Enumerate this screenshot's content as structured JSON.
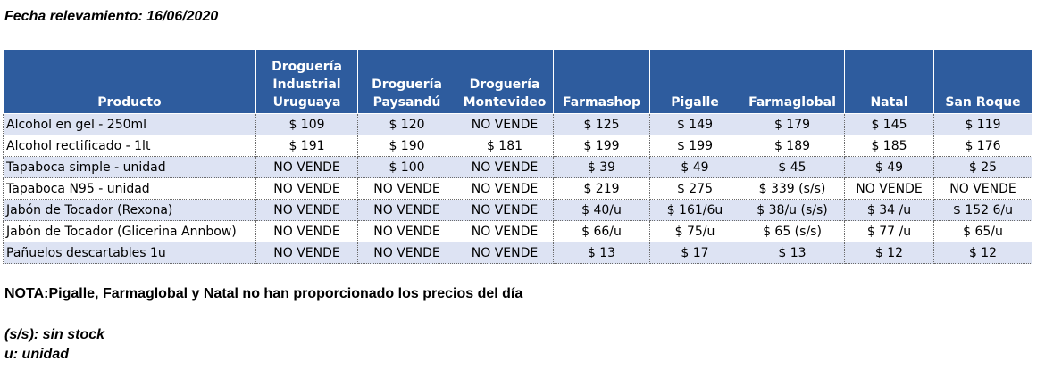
{
  "date_line": "Fecha relevamiento: 16/06/2020",
  "table": {
    "headers": [
      [
        "Producto"
      ],
      [
        "Droguería",
        "Industrial",
        "Uruguaya"
      ],
      [
        "Droguería",
        "Paysandú"
      ],
      [
        "Droguería",
        "Montevideo"
      ],
      [
        "Farmashop"
      ],
      [
        "Pigalle"
      ],
      [
        "Farmaglobal"
      ],
      [
        "Natal"
      ],
      [
        "San Roque"
      ]
    ],
    "rows": [
      [
        "Alcohol en gel  - 250ml",
        "$ 109",
        "$ 120",
        "NO VENDE",
        "$ 125",
        "$ 149",
        "$ 179",
        "$ 145",
        "$ 119"
      ],
      [
        "Alcohol rectificado - 1lt",
        "$ 191",
        "$ 190",
        "$ 181",
        "$ 199",
        "$ 199",
        "$ 189",
        "$ 185",
        "$ 176"
      ],
      [
        "Tapaboca simple - unidad",
        "NO VENDE",
        "$ 100",
        "NO VENDE",
        "$ 39",
        "$ 49",
        "$ 45",
        "$ 49",
        "$ 25"
      ],
      [
        "Tapaboca N95 - unidad",
        "NO VENDE",
        "NO VENDE",
        "NO VENDE",
        "$ 219",
        "$ 275",
        "$ 339 (s/s)",
        "NO VENDE",
        "NO VENDE"
      ],
      [
        "Jabón de Tocador (Rexona)",
        "NO VENDE",
        "NO VENDE",
        "NO VENDE",
        "$ 40/u",
        "$ 161/6u",
        "$ 38/u (s/s)",
        "$ 34 /u",
        "$ 152 6/u"
      ],
      [
        "Jabón de Tocador (Glicerina Annbow)",
        "NO VENDE",
        "NO VENDE",
        "NO VENDE",
        "$ 66/u",
        "$ 75/u",
        "$ 65 (s/s)",
        "$ 77 /u",
        "$ 65/u"
      ],
      [
        "Pañuelos descartables 1u",
        "NO VENDE",
        "NO VENDE",
        "NO VENDE",
        "$ 13",
        "$ 17",
        "$ 13",
        "$ 12",
        "$ 12"
      ]
    ]
  },
  "nota": "NOTA:Pigalle,  Farmaglobal y Natal no han proporcionado los precios del día",
  "legend": {
    "ss": "(s/s): sin stock",
    "u": "u: unidad"
  },
  "colors": {
    "header_bg": "#2e5c9e",
    "row_alt_bg": "#dde3f3"
  }
}
